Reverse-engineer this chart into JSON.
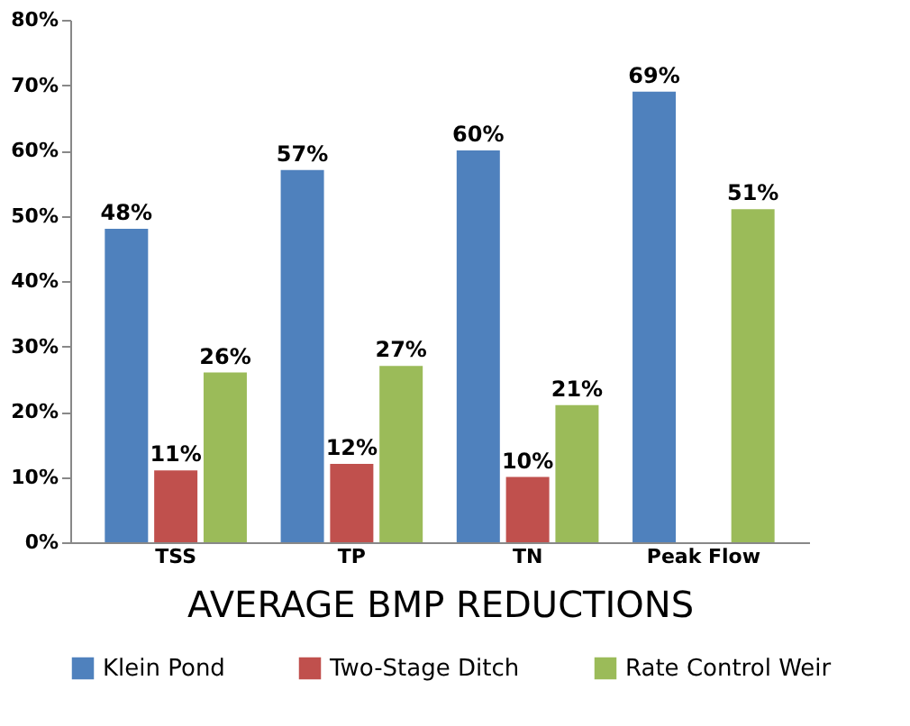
{
  "chart_data": {
    "type": "bar",
    "xlabel": "AVERAGE BMP REDUCTIONS",
    "categories": [
      "TSS",
      "TP",
      "TN",
      "Peak Flow"
    ],
    "series": [
      {
        "name": "Klein Pond",
        "color": "#4f81bd",
        "values": [
          48,
          57,
          60,
          69
        ],
        "value_labels": [
          "48%",
          "57%",
          "60%",
          "69%"
        ]
      },
      {
        "name": "Two-Stage Ditch",
        "color": "#c0504d",
        "values": [
          11,
          12,
          10,
          null
        ],
        "value_labels": [
          "11%",
          "12%",
          "10%",
          null
        ]
      },
      {
        "name": "Rate Control Weir",
        "color": "#9bbb59",
        "values": [
          26,
          27,
          21,
          51
        ],
        "value_labels": [
          "26%",
          "27%",
          "21%",
          "51%"
        ]
      }
    ],
    "ylim": [
      0,
      80
    ],
    "yticks": [
      {
        "value": 0,
        "label": "0%"
      },
      {
        "value": 10,
        "label": "10%"
      },
      {
        "value": 20,
        "label": "20%"
      },
      {
        "value": 30,
        "label": "30%"
      },
      {
        "value": 40,
        "label": "40%"
      },
      {
        "value": 50,
        "label": "50%"
      },
      {
        "value": 60,
        "label": "60%"
      },
      {
        "value": 70,
        "label": "70%"
      },
      {
        "value": 80,
        "label": "80%"
      }
    ],
    "grid": false,
    "legend": "bottom"
  }
}
